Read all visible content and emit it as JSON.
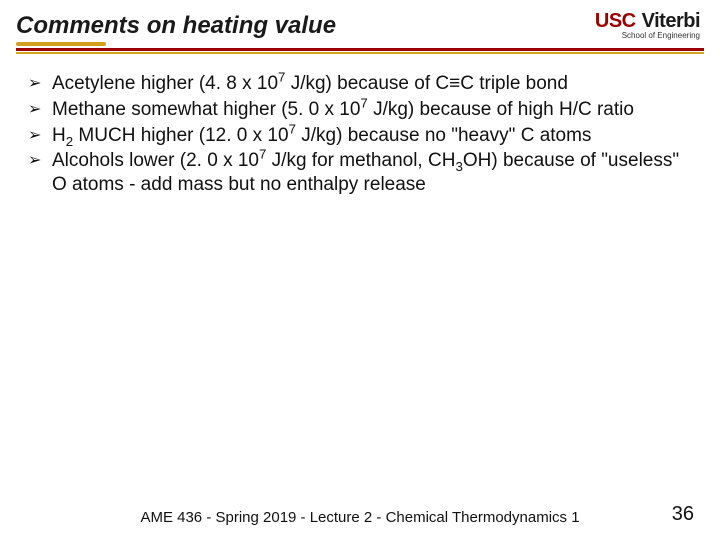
{
  "header": {
    "title": "Comments on heating value",
    "logo_usc": "USC",
    "logo_viterbi": "Viterbi",
    "logo_sub": "School of Engineering",
    "title_color": "#1a1a1a",
    "underline_stub_color": "#d4a020",
    "divider_color": "#990000",
    "divider_gold_color": "#d4a020",
    "usc_color": "#990000"
  },
  "bullets": {
    "glyph": "➢",
    "items": [
      {
        "html": "Acetylene higher (4. 8 x 10<sup>7</sup> J/kg) because of C≡C triple bond"
      },
      {
        "html": "Methane somewhat higher (5. 0 x 10<sup>7</sup> J/kg) because of high H/C ratio"
      },
      {
        "html": "H<sub>2</sub> MUCH higher (12. 0 x 10<sup>7</sup> J/kg) because no \"heavy\" C atoms"
      },
      {
        "html": "Alcohols lower (2. 0 x 10<sup>7</sup> J/kg for methanol, CH<sub>3</sub>OH) because of \"useless\" O atoms - add mass but no enthalpy release"
      }
    ]
  },
  "footer": {
    "text": "AME 436 - Spring 2019 - Lecture 2 - Chemical Thermodynamics 1",
    "page_number": "36"
  },
  "style": {
    "body_font_size": 19,
    "title_font_size": 24,
    "footer_font_size": 15,
    "page_num_font_size": 20,
    "background": "#ffffff",
    "text_color": "#111111"
  }
}
